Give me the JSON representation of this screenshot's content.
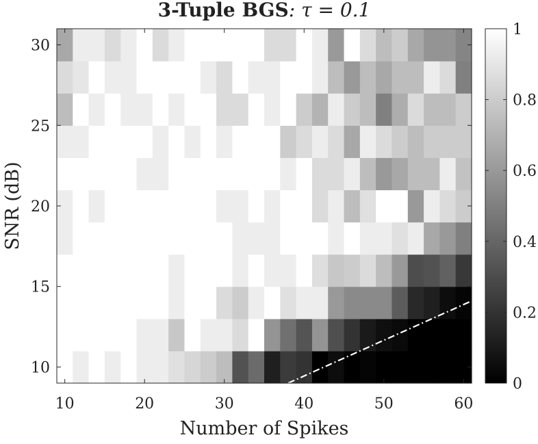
{
  "chart_data": {
    "type": "heatmap",
    "title_bold": "3-Tuple BGS",
    "title_rest": ": τ = 0.1",
    "xlabel": "Number of Spikes",
    "ylabel": "SNR (dB)",
    "x_ticks": [
      "10",
      "20",
      "30",
      "40",
      "50",
      "60"
    ],
    "y_ticks": [
      "10",
      "15",
      "20",
      "25",
      "30"
    ],
    "x_tick_values": [
      10,
      20,
      30,
      40,
      50,
      60
    ],
    "y_tick_values": [
      10,
      15,
      20,
      25,
      30
    ],
    "xlim": [
      9,
      61
    ],
    "ylim": [
      9,
      31
    ],
    "x_centers": [
      10,
      12,
      14,
      16,
      18,
      20,
      22,
      24,
      26,
      28,
      30,
      32,
      34,
      36,
      38,
      40,
      42,
      44,
      46,
      48,
      50,
      52,
      54,
      56,
      58,
      60
    ],
    "y_centers": [
      10,
      12,
      14,
      16,
      18,
      20,
      22,
      24,
      26,
      28,
      30
    ],
    "colorbar": {
      "ticks": [
        "0",
        "0.2",
        "0.4",
        "0.6",
        "0.8",
        "1"
      ],
      "tick_values": [
        0,
        0.2,
        0.4,
        0.6,
        0.8,
        1
      ],
      "range": [
        0,
        1
      ],
      "colormap": "gray"
    },
    "grid": false,
    "values": [
      [
        1.0,
        0.93,
        1.0,
        0.93,
        1.0,
        0.93,
        0.93,
        0.88,
        0.84,
        0.8,
        0.74,
        0.32,
        0.42,
        0.12,
        0.23,
        0.2,
        0.0,
        0.05,
        0.0,
        0.02,
        0.0,
        0.0,
        0.0,
        0.0,
        0.0,
        0.0
      ],
      [
        1.0,
        1.0,
        1.0,
        1.0,
        1.0,
        0.93,
        0.93,
        0.78,
        1.0,
        0.93,
        0.93,
        0.86,
        1.0,
        0.58,
        0.44,
        0.33,
        0.58,
        0.31,
        0.2,
        0.1,
        0.06,
        0.04,
        0.0,
        0.0,
        0.0,
        0.0
      ],
      [
        1.0,
        1.0,
        1.0,
        1.0,
        1.0,
        1.0,
        1.0,
        0.93,
        1.0,
        1.0,
        0.86,
        0.8,
        0.93,
        1.0,
        0.88,
        0.93,
        0.93,
        0.6,
        0.54,
        0.54,
        0.54,
        0.36,
        0.16,
        0.12,
        0.05,
        0.02
      ],
      [
        1.0,
        1.0,
        1.0,
        1.0,
        1.0,
        1.0,
        1.0,
        0.93,
        1.0,
        1.0,
        1.0,
        0.93,
        1.0,
        0.93,
        0.93,
        1.0,
        0.87,
        0.78,
        0.8,
        0.86,
        0.74,
        0.6,
        0.3,
        0.32,
        0.38,
        0.22
      ],
      [
        0.93,
        1.0,
        1.0,
        1.0,
        1.0,
        1.0,
        1.0,
        1.0,
        1.0,
        1.0,
        1.0,
        0.93,
        0.93,
        0.93,
        1.0,
        1.0,
        1.0,
        0.93,
        1.0,
        0.93,
        0.93,
        0.88,
        0.93,
        0.66,
        0.6,
        0.5
      ],
      [
        0.93,
        1.0,
        0.93,
        1.0,
        1.0,
        1.0,
        1.0,
        1.0,
        1.0,
        1.0,
        0.93,
        0.93,
        1.0,
        0.93,
        1.0,
        1.0,
        0.86,
        0.93,
        0.74,
        0.88,
        1.0,
        1.0,
        0.6,
        0.93,
        0.86,
        0.8
      ],
      [
        1.0,
        1.0,
        1.0,
        1.0,
        1.0,
        0.93,
        0.93,
        1.0,
        1.0,
        1.0,
        1.0,
        1.0,
        1.0,
        1.0,
        0.93,
        1.0,
        0.86,
        0.86,
        0.93,
        0.74,
        0.6,
        0.66,
        0.74,
        0.74,
        0.93,
        0.76
      ],
      [
        0.93,
        0.93,
        1.0,
        1.0,
        1.0,
        1.0,
        0.93,
        1.0,
        0.93,
        1.0,
        0.93,
        1.0,
        1.0,
        1.0,
        0.8,
        0.86,
        0.93,
        0.86,
        0.66,
        0.93,
        0.86,
        0.8,
        0.74,
        0.8,
        0.8,
        0.8
      ],
      [
        0.74,
        1.0,
        0.93,
        1.0,
        0.93,
        0.93,
        1.0,
        0.93,
        1.0,
        1.0,
        0.86,
        0.86,
        1.0,
        0.93,
        1.0,
        0.8,
        0.7,
        0.93,
        0.8,
        0.74,
        0.5,
        0.68,
        0.86,
        0.74,
        0.74,
        0.8
      ],
      [
        0.86,
        0.9,
        1.0,
        0.93,
        0.93,
        1.0,
        1.0,
        1.0,
        1.0,
        0.93,
        0.86,
        1.0,
        0.93,
        0.93,
        1.0,
        1.0,
        0.93,
        0.74,
        0.6,
        0.74,
        0.66,
        0.74,
        0.74,
        0.93,
        0.86,
        0.5
      ],
      [
        0.66,
        0.93,
        0.93,
        0.86,
        0.93,
        1.0,
        0.86,
        0.93,
        1.0,
        1.0,
        1.0,
        1.0,
        1.0,
        0.86,
        0.86,
        1.0,
        0.93,
        0.6,
        1.0,
        0.86,
        0.74,
        0.8,
        0.66,
        0.58,
        0.58,
        0.52
      ]
    ],
    "overlay_line": {
      "style": "dash-dot",
      "color": "#ffffff",
      "x": [
        38,
        61
      ],
      "y": [
        9,
        14.1
      ]
    }
  }
}
